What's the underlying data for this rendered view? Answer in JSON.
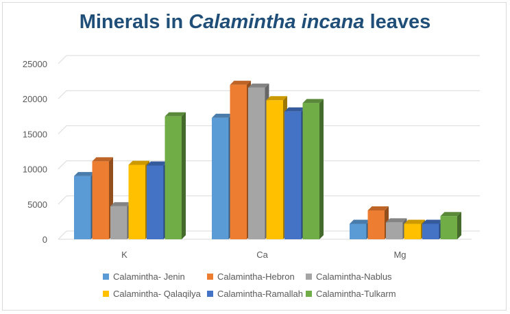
{
  "chart_data": {
    "type": "bar",
    "title_parts": [
      "Minerals in ",
      "Calamintha incana",
      " leaves"
    ],
    "categories": [
      "K",
      "Ca",
      "Mg"
    ],
    "ylim": [
      0,
      25000
    ],
    "yticks": [
      0,
      5000,
      10000,
      15000,
      20000,
      25000
    ],
    "grid": true,
    "legend_position": "bottom",
    "series": [
      {
        "name": "Calamintha- Jenin",
        "color": "#5b9bd5",
        "values": [
          9000,
          17300,
          2200
        ]
      },
      {
        "name": "Calamintha-Hebron",
        "color": "#ed7d31",
        "values": [
          11100,
          22000,
          4100
        ]
      },
      {
        "name": "Calamintha-Nablus",
        "color": "#a5a5a5",
        "values": [
          4700,
          21600,
          2400
        ]
      },
      {
        "name": "Calamintha- Qalaqilya",
        "color": "#ffc000",
        "values": [
          10600,
          19800,
          2200
        ]
      },
      {
        "name": "Calamintha-Ramallah",
        "color": "#4472c4",
        "values": [
          10500,
          18200,
          2200
        ]
      },
      {
        "name": "Calamintha-Tulkarm",
        "color": "#70ad47",
        "values": [
          17500,
          19400,
          3300
        ]
      }
    ]
  }
}
